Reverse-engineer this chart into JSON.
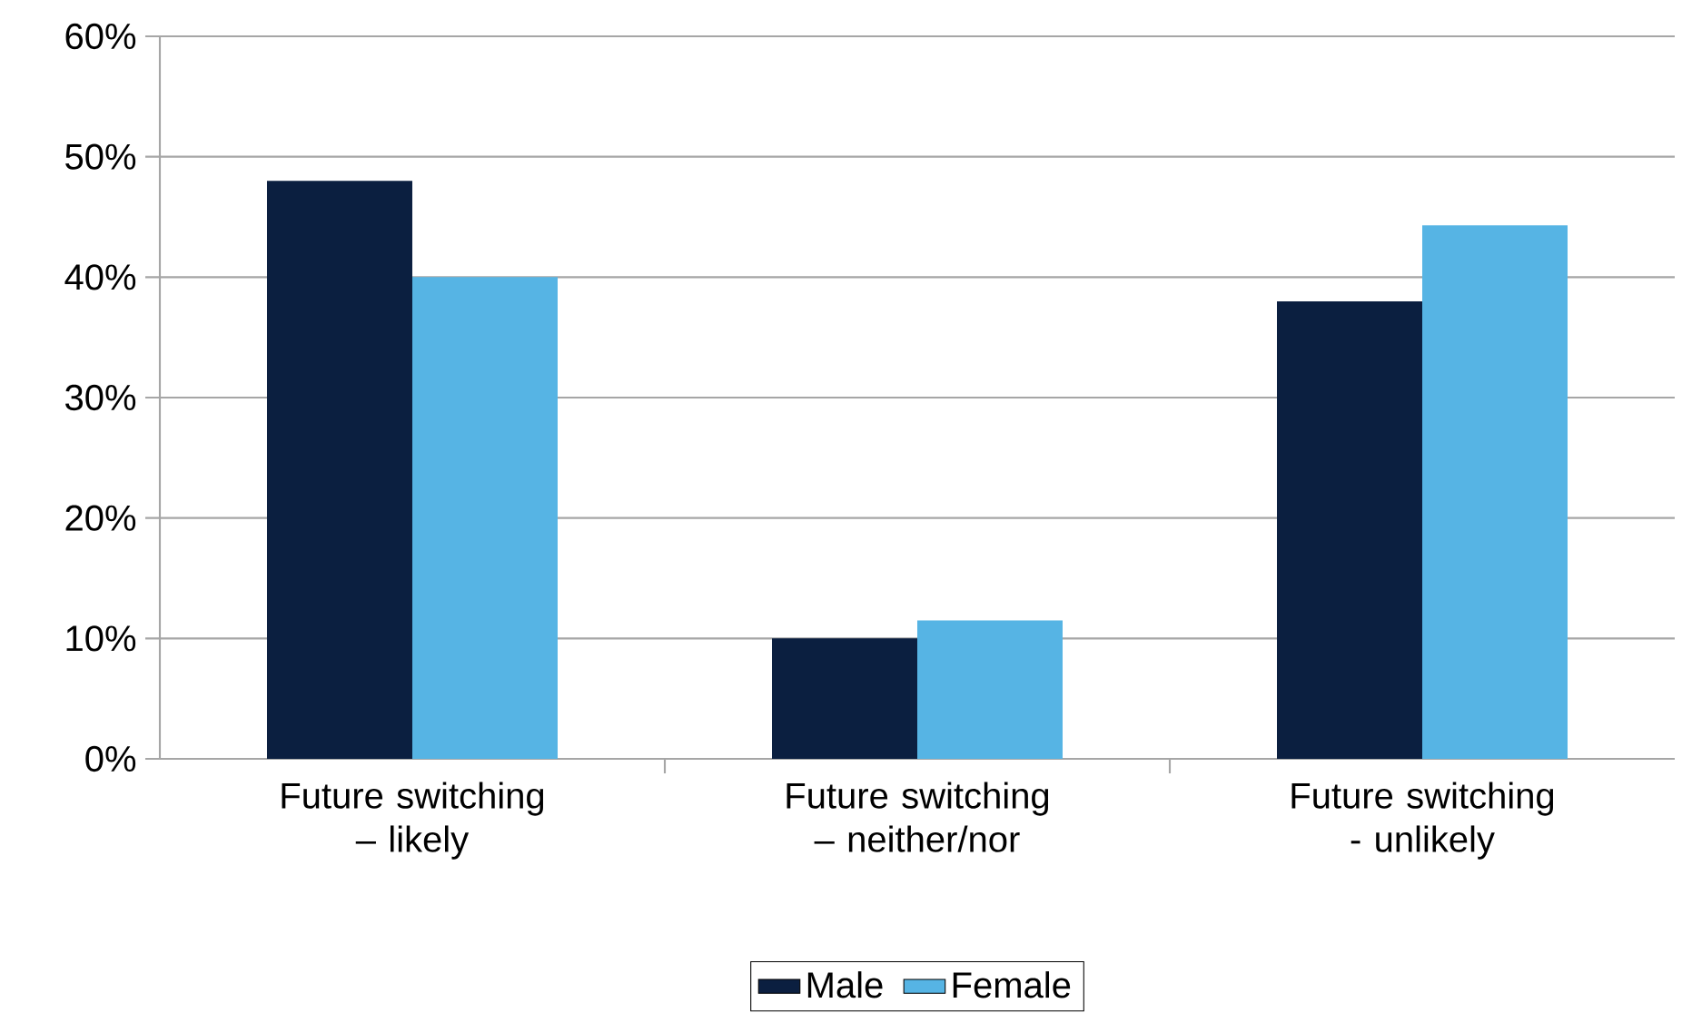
{
  "chart_data": {
    "type": "bar",
    "categories": [
      "Future switching – likely",
      "Future switching – neither/nor",
      "Future switching - unlikely"
    ],
    "series": [
      {
        "name": "Male",
        "color": "#0b1f40",
        "values": [
          48,
          10,
          38
        ]
      },
      {
        "name": "Female",
        "color": "#56b4e4",
        "values": [
          40,
          11.5,
          44.3
        ]
      }
    ],
    "ylim": [
      0,
      60
    ],
    "yticks": [
      {
        "value": 0,
        "label": "0%"
      },
      {
        "value": 10,
        "label": "10%"
      },
      {
        "value": 20,
        "label": "20%"
      },
      {
        "value": 30,
        "label": "30%"
      },
      {
        "value": 40,
        "label": "40%"
      },
      {
        "value": 50,
        "label": "50%"
      },
      {
        "value": 60,
        "label": "60%"
      }
    ],
    "grid": "y",
    "legend": "bottom"
  }
}
